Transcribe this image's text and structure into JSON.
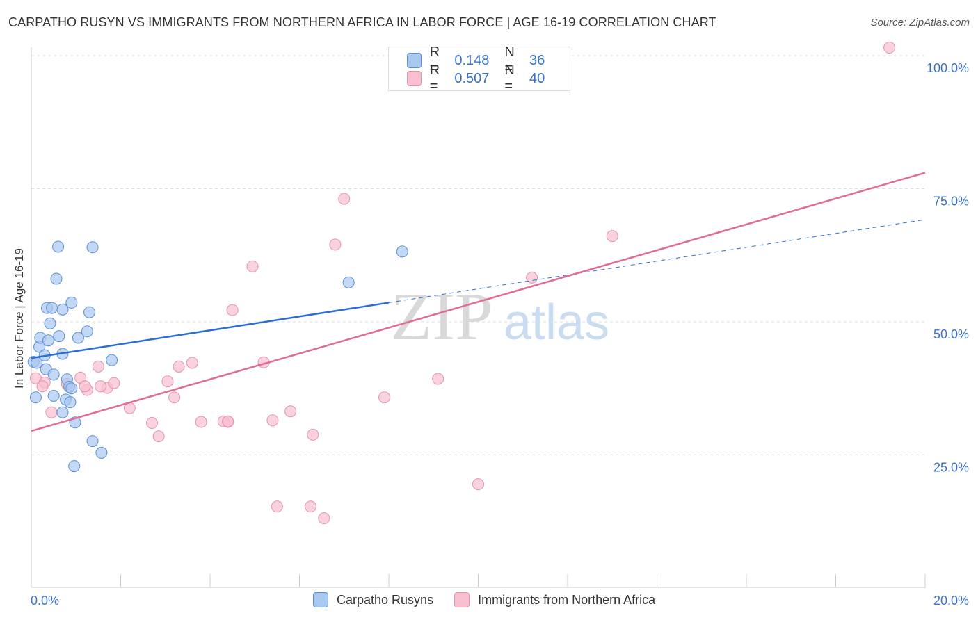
{
  "header": {
    "title": "CARPATHO RUSYN VS IMMIGRANTS FROM NORTHERN AFRICA IN LABOR FORCE | AGE 16-19 CORRELATION CHART",
    "source": "Source: ZipAtlas.com"
  },
  "legend": {
    "r_label": "R =",
    "n_label": "N =",
    "entries": [
      {
        "r": "0.148",
        "n": "36"
      },
      {
        "r": "0.507",
        "n": "40"
      }
    ]
  },
  "colors": {
    "blue_fill": "#a9c8f0",
    "blue_stroke": "#5b8fd6",
    "blue_line": "#2a6fd1",
    "pink_fill": "#f7bfd0",
    "pink_stroke": "#e592ad",
    "pink_line": "#e06b96",
    "grid": "#dddddd",
    "tick_text": "#3a72c8"
  },
  "watermark": {
    "zip": "ZIP",
    "atlas": "atlas"
  },
  "chart_data": {
    "type": "scatter",
    "title": "CARPATHO RUSYN VS IMMIGRANTS FROM NORTHERN AFRICA IN LABOR FORCE | AGE 16-19 CORRELATION CHART",
    "xlabel": "",
    "ylabel": "In Labor Force | Age 16-19",
    "xlim": [
      0,
      20
    ],
    "ylim": [
      0,
      102
    ],
    "x_tick_labels": [
      "0.0%",
      "20.0%"
    ],
    "y_ticks": [
      25,
      50,
      75,
      100
    ],
    "y_tick_labels": [
      "25.0%",
      "50.0%",
      "75.0%",
      "100.0%"
    ],
    "grid": true,
    "legend_position": "top-center",
    "series": [
      {
        "name": "Carpatho Rusyns",
        "color": "#a9c8f0",
        "points": [
          [
            0.05,
            42.5
          ],
          [
            0.1,
            35.8
          ],
          [
            0.12,
            42.3
          ],
          [
            0.18,
            45.3
          ],
          [
            0.2,
            47.0
          ],
          [
            0.3,
            43.7
          ],
          [
            0.33,
            41.1
          ],
          [
            0.35,
            52.6
          ],
          [
            0.38,
            46.5
          ],
          [
            0.42,
            49.7
          ],
          [
            0.46,
            52.6
          ],
          [
            0.5,
            36.1
          ],
          [
            0.5,
            40.1
          ],
          [
            0.56,
            58.1
          ],
          [
            0.6,
            64.1
          ],
          [
            0.62,
            47.3
          ],
          [
            0.7,
            52.3
          ],
          [
            0.7,
            44.0
          ],
          [
            0.7,
            33.0
          ],
          [
            0.77,
            35.4
          ],
          [
            0.8,
            39.2
          ],
          [
            0.85,
            37.8
          ],
          [
            0.87,
            34.9
          ],
          [
            0.9,
            53.6
          ],
          [
            0.96,
            22.9
          ],
          [
            0.98,
            31.1
          ],
          [
            1.05,
            47.0
          ],
          [
            1.25,
            48.2
          ],
          [
            1.3,
            51.8
          ],
          [
            1.37,
            64.0
          ],
          [
            1.37,
            27.6
          ],
          [
            1.57,
            25.4
          ],
          [
            1.8,
            42.8
          ],
          [
            7.1,
            57.4
          ],
          [
            8.3,
            63.2
          ],
          [
            0.9,
            37.5
          ]
        ],
        "trend": {
          "x": [
            0,
            8.0
          ],
          "y": [
            43.2,
            53.6
          ]
        },
        "trend_extension": {
          "x": [
            8.0,
            20.0
          ],
          "y": [
            53.6,
            69.2
          ]
        }
      },
      {
        "name": "Immigrants from Northern Africa",
        "color": "#f7bfd0",
        "points": [
          [
            0.1,
            39.4
          ],
          [
            0.3,
            38.6
          ],
          [
            0.45,
            33.0
          ],
          [
            0.8,
            38.3
          ],
          [
            1.1,
            39.5
          ],
          [
            1.25,
            37.2
          ],
          [
            1.5,
            41.6
          ],
          [
            1.7,
            37.6
          ],
          [
            1.85,
            38.5
          ],
          [
            2.2,
            33.8
          ],
          [
            2.7,
            31.0
          ],
          [
            2.85,
            28.5
          ],
          [
            3.05,
            38.8
          ],
          [
            3.2,
            35.8
          ],
          [
            3.3,
            41.6
          ],
          [
            3.6,
            42.3
          ],
          [
            3.8,
            31.2
          ],
          [
            4.3,
            31.3
          ],
          [
            4.4,
            31.2
          ],
          [
            4.5,
            52.2
          ],
          [
            4.95,
            60.4
          ],
          [
            5.2,
            42.4
          ],
          [
            5.4,
            31.5
          ],
          [
            5.5,
            15.3
          ],
          [
            5.8,
            33.2
          ],
          [
            6.25,
            15.3
          ],
          [
            6.3,
            28.8
          ],
          [
            6.55,
            13.1
          ],
          [
            6.8,
            64.5
          ],
          [
            7.0,
            73.1
          ],
          [
            7.9,
            35.8
          ],
          [
            9.1,
            39.3
          ],
          [
            10.0,
            19.5
          ],
          [
            11.2,
            58.3
          ],
          [
            13.0,
            66.1
          ],
          [
            19.2,
            101.5
          ],
          [
            0.25,
            37.9
          ],
          [
            1.55,
            37.9
          ],
          [
            1.2,
            37.9
          ],
          [
            4.4,
            31.3
          ]
        ],
        "trend": {
          "x": [
            0,
            20.0
          ],
          "y": [
            29.5,
            78.0
          ]
        }
      }
    ]
  }
}
